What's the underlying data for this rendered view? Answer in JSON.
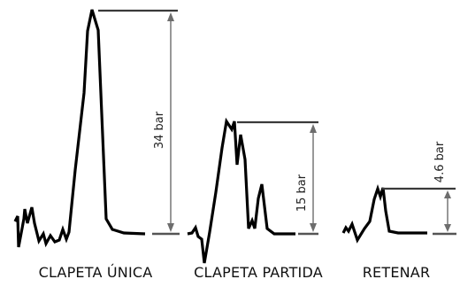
{
  "panels": [
    {
      "id": "clapeta-unica",
      "caption": "CLAPETA ÚNICA",
      "measurement": "34 bar"
    },
    {
      "id": "clapeta-partida",
      "caption": "CLAPETA PARTIDA",
      "measurement": "15 bar"
    },
    {
      "id": "retenar",
      "caption": "RETENAR",
      "measurement": "4.6 bar"
    }
  ]
}
